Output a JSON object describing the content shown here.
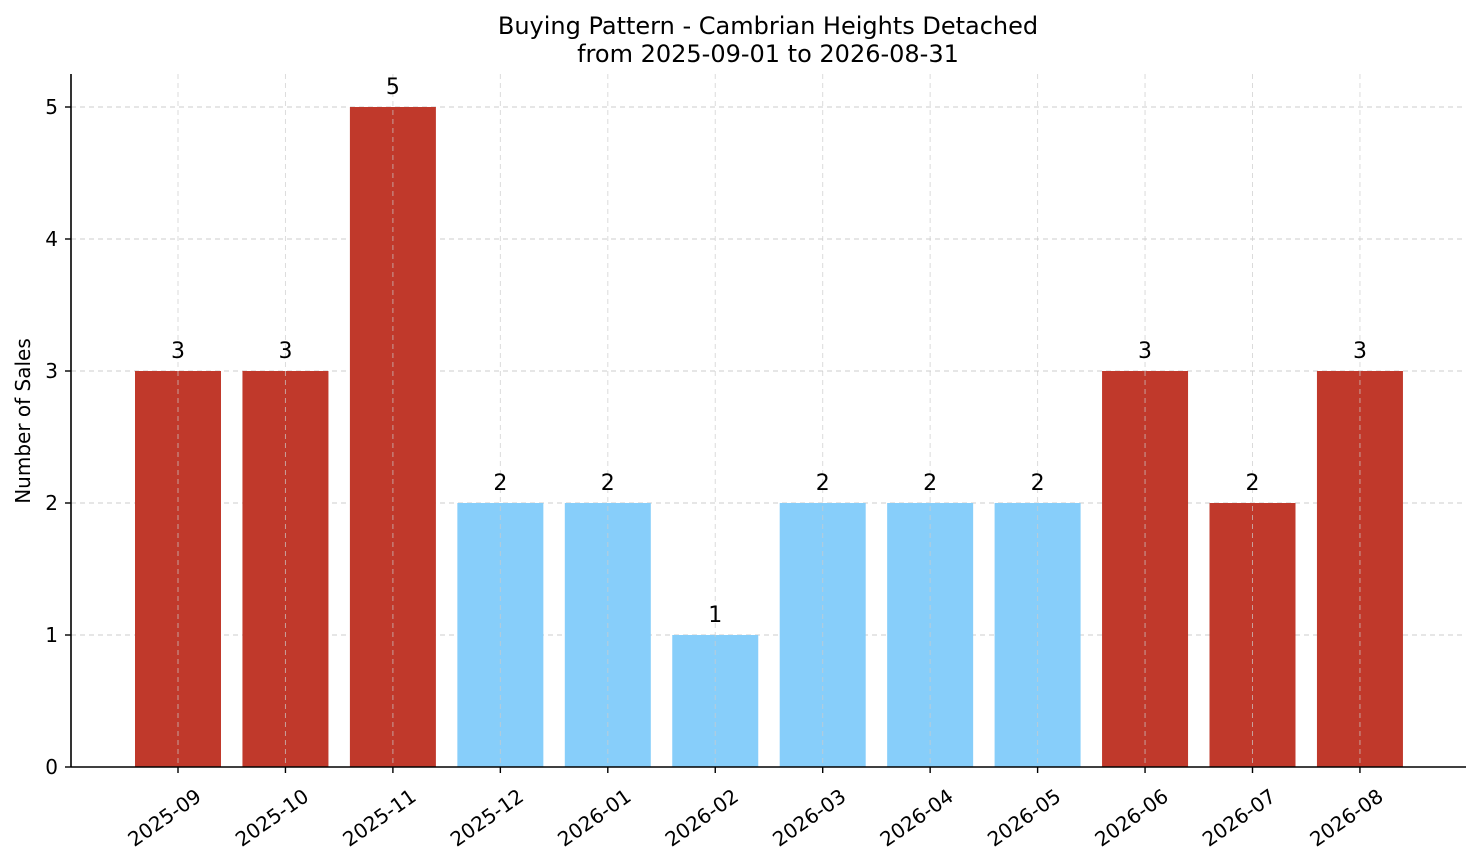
{
  "chart_data": {
    "type": "bar",
    "title": "Buying Pattern - Cambrian Heights Detached",
    "subtitle": "from 2025-09-01 to 2026-08-31",
    "xlabel": "",
    "ylabel": "Number of Sales",
    "categories": [
      "2025-09",
      "2025-10",
      "2025-11",
      "2025-12",
      "2026-01",
      "2026-02",
      "2026-03",
      "2026-04",
      "2026-05",
      "2026-06",
      "2026-07",
      "2026-08"
    ],
    "values": [
      3,
      3,
      5,
      2,
      2,
      1,
      2,
      2,
      2,
      3,
      2,
      3
    ],
    "value_labels": [
      "3",
      "3",
      "5",
      "2",
      "2",
      "1",
      "2",
      "2",
      "2",
      "3",
      "2",
      "3"
    ],
    "bar_colors": [
      "#c0392b",
      "#c0392b",
      "#c0392b",
      "#87cefa",
      "#87cefa",
      "#87cefa",
      "#87cefa",
      "#87cefa",
      "#87cefa",
      "#c0392b",
      "#c0392b",
      "#c0392b"
    ],
    "yticks": [
      0,
      1,
      2,
      3,
      4,
      5
    ],
    "ytick_labels": [
      "0",
      "1",
      "2",
      "3",
      "4",
      "5"
    ],
    "ylim": [
      0,
      5.25
    ],
    "grid": true
  }
}
